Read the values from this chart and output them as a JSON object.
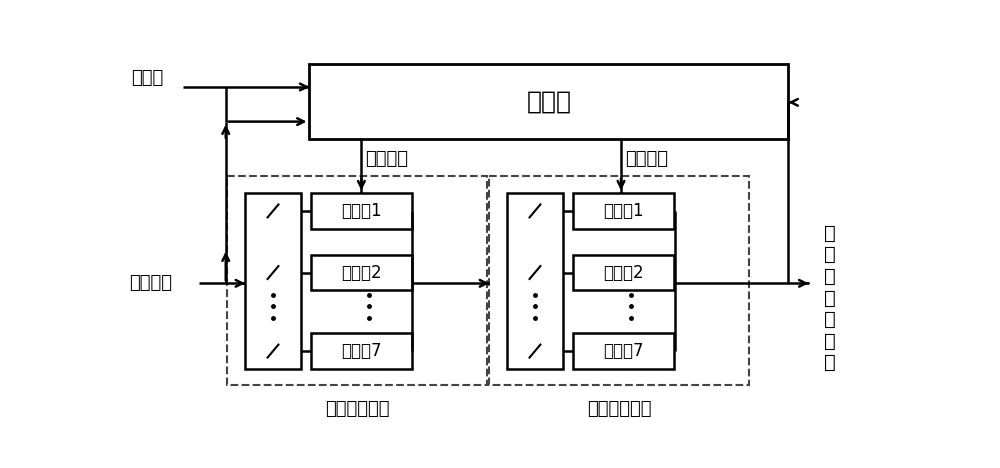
{
  "bg_color": "#ffffff",
  "line_color": "#000000",
  "labels": {
    "ref": "参考值",
    "input": "输入信号",
    "cmd1": "切换指令",
    "cmd2": "切换指令",
    "period1": "第一切换周期",
    "period2": "第二切换周期",
    "controller": "控制器",
    "output_lines": [
      "变",
      "流",
      "器",
      "控",
      "制",
      "信",
      "号"
    ]
  },
  "font_size_main": 18,
  "font_size_label": 13,
  "font_size_small": 12
}
